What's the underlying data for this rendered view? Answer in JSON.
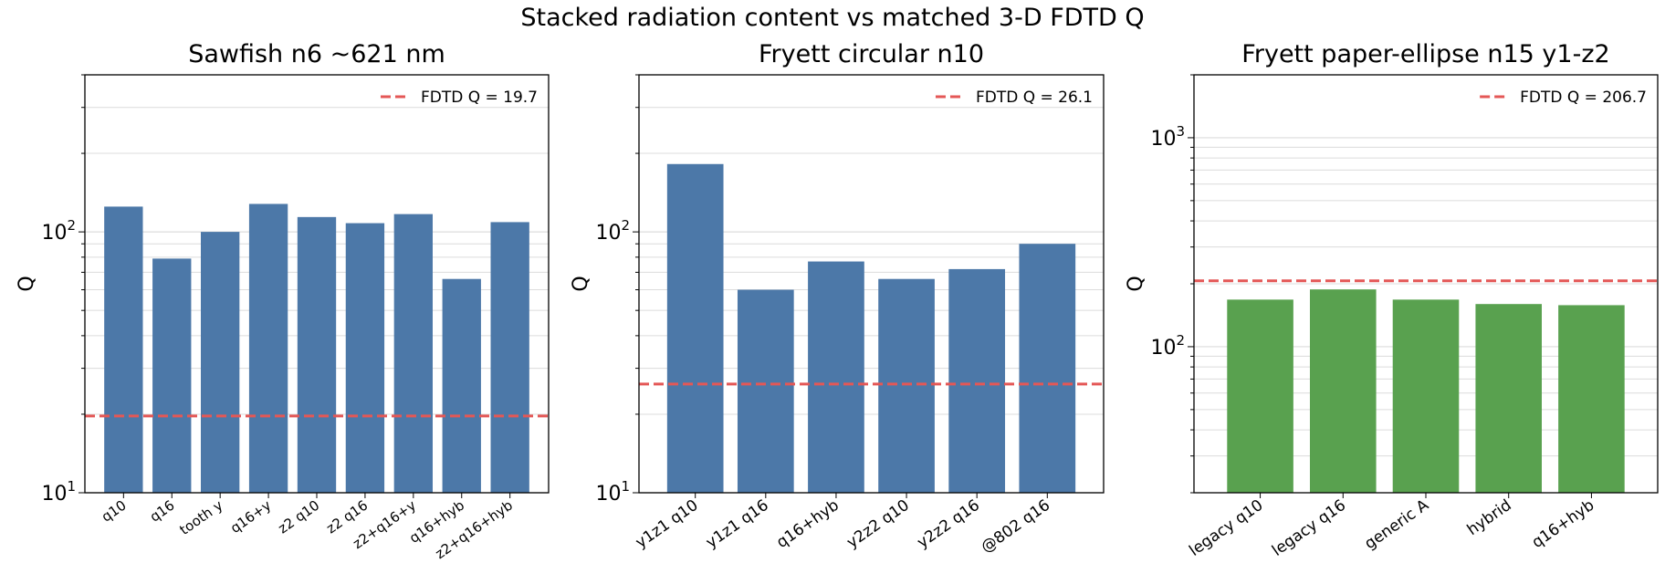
{
  "suptitle": "Stacked radiation content vs matched 3-D FDTD Q",
  "colors": {
    "blue": "#4c78a8",
    "green": "#59a14f",
    "ref": "#e45756",
    "grid": "#dcdcdc"
  },
  "chart_data": [
    {
      "type": "bar",
      "title": "Sawfish n6 ~621 nm",
      "ylabel": "Q",
      "yscale": "log",
      "ylim": [
        10,
        400
      ],
      "yticks": [
        {
          "value": 10,
          "base": "10",
          "exp": "1"
        },
        {
          "value": 100,
          "base": "10",
          "exp": "2"
        }
      ],
      "categories": [
        "q10",
        "q16",
        "tooth y",
        "q16+y",
        "z2 q10",
        "z2 q16",
        "z2+q16+y",
        "q16+hyb",
        "z2+q16+hyb"
      ],
      "values": [
        125,
        79,
        100,
        128,
        114,
        108,
        117,
        66,
        109
      ],
      "bar_color": "#4c78a8",
      "reference": {
        "label": "FDTD Q = 19.7",
        "value": 19.7
      },
      "legend": "top-right",
      "grid": true
    },
    {
      "type": "bar",
      "title": "Fryett circular n10",
      "ylabel": "Q",
      "yscale": "log",
      "ylim": [
        10,
        400
      ],
      "yticks": [
        {
          "value": 10,
          "base": "10",
          "exp": "1"
        },
        {
          "value": 100,
          "base": "10",
          "exp": "2"
        }
      ],
      "categories": [
        "y1z1 q10",
        "y1z1 q16",
        "q16+hyb",
        "y2z2 q10",
        "y2z2 q16",
        "@802 q16"
      ],
      "values": [
        182,
        60,
        77,
        66,
        72,
        90
      ],
      "bar_color": "#4c78a8",
      "reference": {
        "label": "FDTD Q = 26.1",
        "value": 26.1
      },
      "legend": "top-right",
      "grid": true
    },
    {
      "type": "bar",
      "title": "Fryett paper-ellipse n15 y1-z2",
      "ylabel": "Q",
      "yscale": "log",
      "ylim": [
        20,
        2000
      ],
      "yticks": [
        {
          "value": 100,
          "base": "10",
          "exp": "2"
        },
        {
          "value": 1000,
          "base": "10",
          "exp": "3"
        }
      ],
      "categories": [
        "legacy q10",
        "legacy q16",
        "generic A",
        "hybrid",
        "q16+hyb"
      ],
      "values": [
        168,
        188,
        168,
        160,
        158
      ],
      "bar_color": "#59a14f",
      "reference": {
        "label": "FDTD Q = 206.7",
        "value": 206.7
      },
      "legend": "top-right",
      "grid": true
    }
  ]
}
